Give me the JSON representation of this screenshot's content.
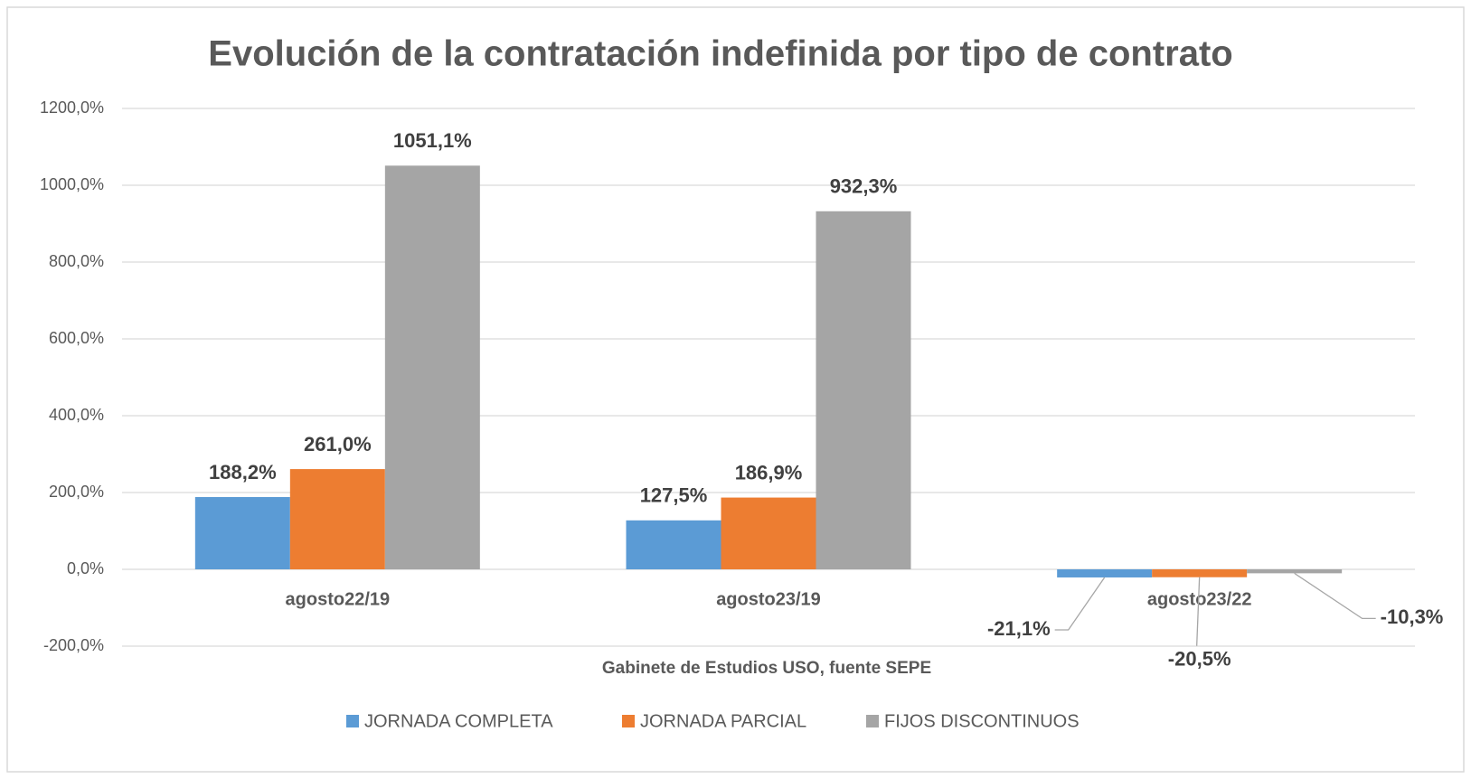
{
  "chart_data": {
    "type": "bar",
    "title": "Evolución de la contratación indefinida por tipo de contrato",
    "x_label": "Gabinete de Estudios USO, fuente SEPE",
    "categories": [
      "agosto22/19",
      "agosto23/19",
      "agosto23/22"
    ],
    "series": [
      {
        "name": "JORNADA COMPLETA",
        "color": "#5b9bd5",
        "values": [
          188.2,
          127.5,
          -21.1
        ],
        "value_labels": [
          "188,2%",
          "127,5%",
          "-21,1%"
        ]
      },
      {
        "name": "JORNADA PARCIAL",
        "color": "#ed7d31",
        "values": [
          261.0,
          186.9,
          -20.5
        ],
        "value_labels": [
          "261,0%",
          "186,9%",
          "-20,5%"
        ]
      },
      {
        "name": "FIJOS DISCONTINUOS",
        "color": "#a5a5a5",
        "values": [
          1051.1,
          932.3,
          -10.3
        ],
        "value_labels": [
          "1051,1%",
          "932,3%",
          "-10,3%"
        ]
      }
    ],
    "ylim": [
      -200,
      1200
    ],
    "yticks": [
      {
        "value": -200,
        "label": "-200,0%"
      },
      {
        "value": 0,
        "label": "0,0%"
      },
      {
        "value": 200,
        "label": "200,0%"
      },
      {
        "value": 400,
        "label": "400,0%"
      },
      {
        "value": 600,
        "label": "600,0%"
      },
      {
        "value": 800,
        "label": "800,0%"
      },
      {
        "value": 1000,
        "label": "1000,0%"
      },
      {
        "value": 1200,
        "label": "1200,0%"
      }
    ],
    "grid": true,
    "legend": "bottom"
  }
}
